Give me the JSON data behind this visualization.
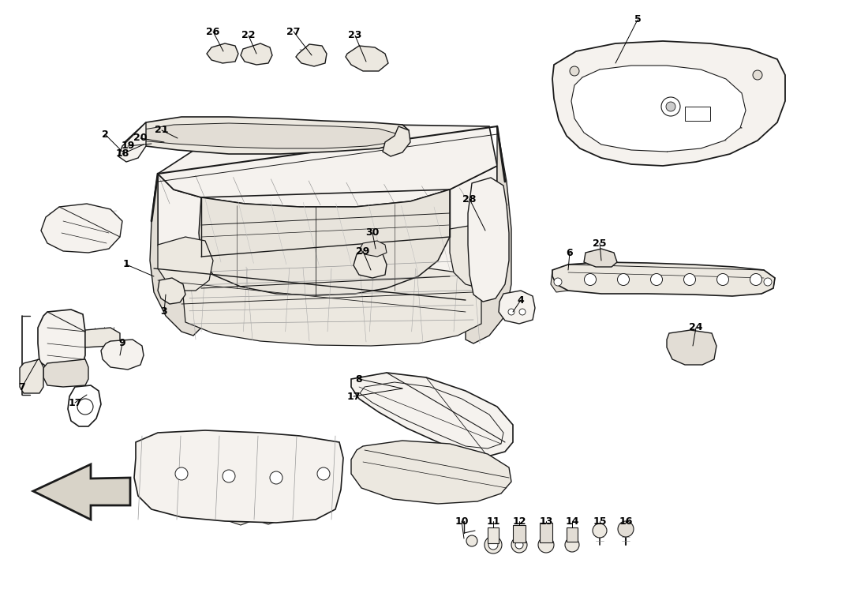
{
  "background_color": "#ffffff",
  "line_color": "#1a1a1a",
  "figsize": [
    11.0,
    7.51
  ],
  "dpi": 100,
  "font_size": 9,
  "hatch_color": "#555555",
  "part_fill": "#f5f2ee",
  "part_fill2": "#ece8e0",
  "part_fill3": "#e2ddd5"
}
